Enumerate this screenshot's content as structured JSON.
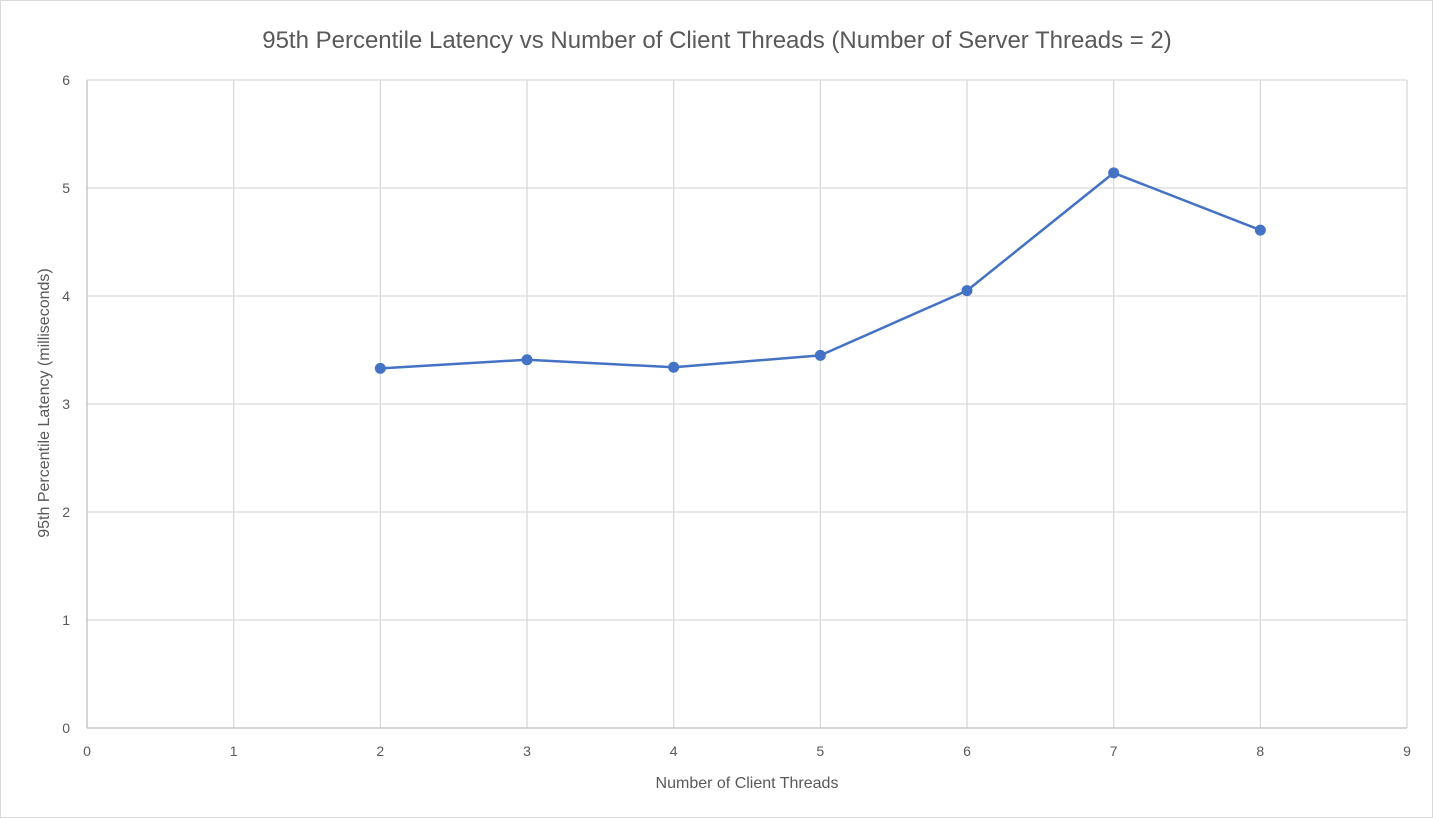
{
  "chart_data": {
    "type": "line",
    "title": "95th Percentile Latency vs Number of Client Threads (Number of Server Threads = 2)",
    "xlabel": "Number of Client Threads",
    "ylabel": "95th Percentile Latency (milliseconds)",
    "xlim": [
      0,
      9
    ],
    "ylim": [
      0,
      6
    ],
    "x_ticks": [
      "0",
      "1",
      "2",
      "3",
      "4",
      "5",
      "6",
      "7",
      "8",
      "9"
    ],
    "y_ticks": [
      "0",
      "1",
      "2",
      "3",
      "4",
      "5",
      "6"
    ],
    "grid": true,
    "legend": "none",
    "series": [
      {
        "color": "#4472c4",
        "x": [
          2,
          3,
          4,
          5,
          6,
          7,
          8
        ],
        "y": [
          3.33,
          3.41,
          3.34,
          3.45,
          4.05,
          5.14,
          4.61
        ]
      }
    ]
  }
}
